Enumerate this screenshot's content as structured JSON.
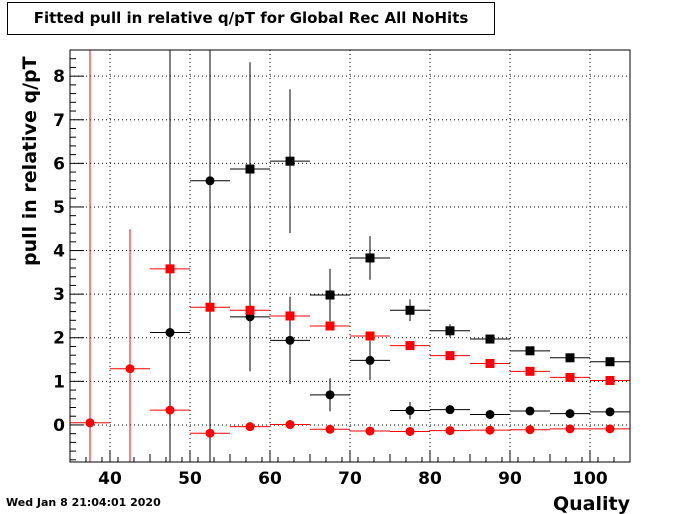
{
  "title": "Fitted pull in relative q/pT for Global Rec All NoHits",
  "timestamp": "Wed Jan  8 21:04:01 2020",
  "chart_data": {
    "type": "scatter",
    "title": "Fitted pull in relative q/pT for Global Rec All NoHits",
    "xlabel": "Quality",
    "ylabel": "pull in relative q/pT",
    "xlim": [
      35,
      105
    ],
    "ylim": [
      -0.85,
      8.6
    ],
    "xticks": [
      40,
      50,
      60,
      70,
      80,
      90,
      100
    ],
    "yticks": [
      0,
      1,
      2,
      3,
      4,
      5,
      6,
      7,
      8
    ],
    "grid": true,
    "bin_half_width": 2.5,
    "series": [
      {
        "color": "#000000",
        "marker": "square",
        "points": [
          {
            "x": 57.5,
            "y": 5.87,
            "err": 2.45
          },
          {
            "x": 62.5,
            "y": 6.05,
            "err": 1.65
          },
          {
            "x": 67.5,
            "y": 2.98,
            "err": 0.6
          },
          {
            "x": 72.5,
            "y": 3.83,
            "err": 0.5
          },
          {
            "x": 77.5,
            "y": 2.63,
            "err": 0.25
          },
          {
            "x": 82.5,
            "y": 2.16,
            "err": 0.15
          },
          {
            "x": 87.5,
            "y": 1.97,
            "err": 0.08
          },
          {
            "x": 92.5,
            "y": 1.7,
            "err": 0.06
          },
          {
            "x": 97.5,
            "y": 1.54,
            "err": 0.05
          },
          {
            "x": 102.5,
            "y": 1.45,
            "err": 0.05
          }
        ]
      },
      {
        "color": "#000000",
        "marker": "circle",
        "points": [
          {
            "x": 47.5,
            "y": 2.12,
            "err": 8.8
          },
          {
            "x": 52.5,
            "y": 5.6,
            "err": 8.8
          },
          {
            "x": 57.5,
            "y": 2.48,
            "err": 1.25
          },
          {
            "x": 62.5,
            "y": 1.94,
            "err": 1.0
          },
          {
            "x": 67.5,
            "y": 0.69,
            "err": 0.38
          },
          {
            "x": 72.5,
            "y": 1.48,
            "err": 0.45
          },
          {
            "x": 77.5,
            "y": 0.33,
            "err": 0.2
          },
          {
            "x": 82.5,
            "y": 0.35,
            "err": 0.1
          },
          {
            "x": 87.5,
            "y": 0.24,
            "err": 0.06
          },
          {
            "x": 92.5,
            "y": 0.32,
            "err": 0.05
          },
          {
            "x": 97.5,
            "y": 0.26,
            "err": 0.04
          },
          {
            "x": 102.5,
            "y": 0.3,
            "err": 0.04
          }
        ]
      },
      {
        "color": "#ff0000",
        "marker": "square",
        "points": [
          {
            "x": 47.5,
            "y": 3.58,
            "err": 0.05
          },
          {
            "x": 52.5,
            "y": 2.7,
            "err": 0.05
          },
          {
            "x": 57.5,
            "y": 2.63,
            "err": 0.05
          },
          {
            "x": 62.5,
            "y": 2.5,
            "err": 0.04
          },
          {
            "x": 67.5,
            "y": 2.27,
            "err": 0.04
          },
          {
            "x": 72.5,
            "y": 2.04,
            "err": 0.04
          },
          {
            "x": 77.5,
            "y": 1.82,
            "err": 0.03
          },
          {
            "x": 82.5,
            "y": 1.59,
            "err": 0.03
          },
          {
            "x": 87.5,
            "y": 1.41,
            "err": 0.03
          },
          {
            "x": 92.5,
            "y": 1.23,
            "err": 0.03
          },
          {
            "x": 97.5,
            "y": 1.09,
            "err": 0.03
          },
          {
            "x": 102.5,
            "y": 1.02,
            "err": 0.03
          }
        ]
      },
      {
        "color": "#ff0000",
        "marker": "circle",
        "points": [
          {
            "x": 37.5,
            "y": 0.05,
            "err": 8.8
          },
          {
            "x": 42.5,
            "y": 1.29,
            "err": 3.2
          },
          {
            "x": 47.5,
            "y": 0.34,
            "err": 0.05
          },
          {
            "x": 52.5,
            "y": -0.19,
            "err": 0.04
          },
          {
            "x": 57.5,
            "y": -0.04,
            "err": 0.04
          },
          {
            "x": 62.5,
            "y": 0.01,
            "err": 0.03
          },
          {
            "x": 67.5,
            "y": -0.1,
            "err": 0.03
          },
          {
            "x": 72.5,
            "y": -0.14,
            "err": 0.03
          },
          {
            "x": 77.5,
            "y": -0.15,
            "err": 0.03
          },
          {
            "x": 82.5,
            "y": -0.13,
            "err": 0.03
          },
          {
            "x": 87.5,
            "y": -0.12,
            "err": 0.03
          },
          {
            "x": 92.5,
            "y": -0.11,
            "err": 0.02
          },
          {
            "x": 97.5,
            "y": -0.09,
            "err": 0.02
          },
          {
            "x": 102.5,
            "y": -0.09,
            "err": 0.02
          }
        ]
      }
    ]
  }
}
